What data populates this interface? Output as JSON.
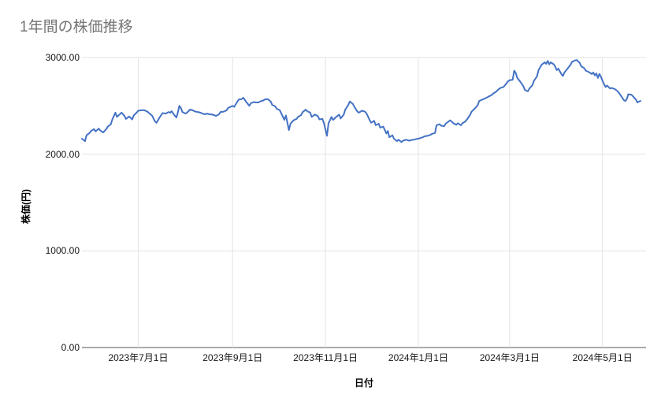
{
  "chart_data": {
    "type": "line",
    "title": "1年間の株価推移",
    "xlabel": "日付",
    "ylabel": "株価(円)",
    "legend": "none",
    "grid": "on",
    "line_color": "#4472c4",
    "grid_color": "#e3e3e3",
    "axis_line_color": "#555555",
    "title_color": "#757575",
    "ylim": [
      0,
      3000
    ],
    "y_ticks": [
      {
        "value": 0,
        "label": "0.00"
      },
      {
        "value": 1000,
        "label": "1000.00"
      },
      {
        "value": 2000,
        "label": "2000.00"
      },
      {
        "value": 3000,
        "label": "3000.00"
      }
    ],
    "x_epoch": "2023-05-25",
    "x_unit": "days_since_epoch",
    "x_max_day": 367,
    "x_ticks": [
      {
        "day": 37,
        "label": "2023年7月1日"
      },
      {
        "day": 99,
        "label": "2023年9月1日"
      },
      {
        "day": 160,
        "label": "2023年11月1日"
      },
      {
        "day": 221,
        "label": "2024年1月1日"
      },
      {
        "day": 281,
        "label": "2024年3月1日"
      },
      {
        "day": 342,
        "label": "2024年5月1日"
      }
    ],
    "series_name": "株価",
    "points": [
      [
        0,
        2160
      ],
      [
        2,
        2135
      ],
      [
        3,
        2195
      ],
      [
        5,
        2220
      ],
      [
        6,
        2240
      ],
      [
        8,
        2260
      ],
      [
        9,
        2235
      ],
      [
        11,
        2265
      ],
      [
        12,
        2245
      ],
      [
        14,
        2225
      ],
      [
        16,
        2260
      ],
      [
        17,
        2285
      ],
      [
        19,
        2310
      ],
      [
        20,
        2360
      ],
      [
        22,
        2430
      ],
      [
        23,
        2385
      ],
      [
        25,
        2415
      ],
      [
        26,
        2430
      ],
      [
        28,
        2395
      ],
      [
        29,
        2365
      ],
      [
        31,
        2390
      ],
      [
        33,
        2360
      ],
      [
        34,
        2400
      ],
      [
        36,
        2430
      ],
      [
        37,
        2450
      ],
      [
        39,
        2455
      ],
      [
        41,
        2455
      ],
      [
        43,
        2440
      ],
      [
        46,
        2400
      ],
      [
        48,
        2340
      ],
      [
        49,
        2325
      ],
      [
        51,
        2380
      ],
      [
        53,
        2425
      ],
      [
        55,
        2420
      ],
      [
        57,
        2437
      ],
      [
        58,
        2429
      ],
      [
        59,
        2445
      ],
      [
        60,
        2420
      ],
      [
        62,
        2379
      ],
      [
        63,
        2429
      ],
      [
        64,
        2500
      ],
      [
        65,
        2478
      ],
      [
        66,
        2437
      ],
      [
        68,
        2420
      ],
      [
        69,
        2429
      ],
      [
        70,
        2445
      ],
      [
        71,
        2462
      ],
      [
        73,
        2453
      ],
      [
        74,
        2443
      ],
      [
        76,
        2437
      ],
      [
        78,
        2429
      ],
      [
        79,
        2420
      ],
      [
        81,
        2413
      ],
      [
        82,
        2420
      ],
      [
        84,
        2412
      ],
      [
        85,
        2412
      ],
      [
        87,
        2404
      ],
      [
        88,
        2396
      ],
      [
        90,
        2412
      ],
      [
        91,
        2437
      ],
      [
        93,
        2440
      ],
      [
        95,
        2453
      ],
      [
        96,
        2478
      ],
      [
        97,
        2486
      ],
      [
        99,
        2500
      ],
      [
        100,
        2490
      ],
      [
        102,
        2540
      ],
      [
        103,
        2565
      ],
      [
        105,
        2570
      ],
      [
        106,
        2584
      ],
      [
        108,
        2540
      ],
      [
        110,
        2500
      ],
      [
        111,
        2527
      ],
      [
        113,
        2540
      ],
      [
        114,
        2535
      ],
      [
        116,
        2535
      ],
      [
        117,
        2545
      ],
      [
        119,
        2555
      ],
      [
        120,
        2565
      ],
      [
        122,
        2570
      ],
      [
        124,
        2545
      ],
      [
        125,
        2510
      ],
      [
        127,
        2495
      ],
      [
        128,
        2470
      ],
      [
        130,
        2455
      ],
      [
        131,
        2420
      ],
      [
        133,
        2355
      ],
      [
        134,
        2400
      ],
      [
        136,
        2250
      ],
      [
        137,
        2315
      ],
      [
        139,
        2350
      ],
      [
        141,
        2365
      ],
      [
        142,
        2385
      ],
      [
        144,
        2405
      ],
      [
        145,
        2435
      ],
      [
        147,
        2460
      ],
      [
        148,
        2445
      ],
      [
        150,
        2430
      ],
      [
        151,
        2385
      ],
      [
        153,
        2410
      ],
      [
        155,
        2395
      ],
      [
        156,
        2360
      ],
      [
        158,
        2365
      ],
      [
        159,
        2320
      ],
      [
        161,
        2190
      ],
      [
        162,
        2320
      ],
      [
        164,
        2385
      ],
      [
        165,
        2355
      ],
      [
        167,
        2385
      ],
      [
        169,
        2410
      ],
      [
        170,
        2370
      ],
      [
        172,
        2410
      ],
      [
        173,
        2460
      ],
      [
        175,
        2510
      ],
      [
        176,
        2545
      ],
      [
        178,
        2520
      ],
      [
        179,
        2490
      ],
      [
        181,
        2440
      ],
      [
        182,
        2430
      ],
      [
        184,
        2450
      ],
      [
        186,
        2440
      ],
      [
        187,
        2420
      ],
      [
        189,
        2355
      ],
      [
        190,
        2325
      ],
      [
        192,
        2345
      ],
      [
        193,
        2300
      ],
      [
        195,
        2315
      ],
      [
        196,
        2275
      ],
      [
        198,
        2285
      ],
      [
        200,
        2215
      ],
      [
        201,
        2240
      ],
      [
        202,
        2175
      ],
      [
        204,
        2195
      ],
      [
        205,
        2160
      ],
      [
        207,
        2135
      ],
      [
        208,
        2150
      ],
      [
        210,
        2125
      ],
      [
        211,
        2140
      ],
      [
        213,
        2150
      ],
      [
        215,
        2140
      ],
      [
        216,
        2145
      ],
      [
        218,
        2150
      ],
      [
        219,
        2155
      ],
      [
        221,
        2160
      ],
      [
        222,
        2165
      ],
      [
        224,
        2175
      ],
      [
        225,
        2185
      ],
      [
        227,
        2190
      ],
      [
        229,
        2200
      ],
      [
        230,
        2210
      ],
      [
        232,
        2220
      ],
      [
        233,
        2300
      ],
      [
        235,
        2310
      ],
      [
        236,
        2295
      ],
      [
        238,
        2290
      ],
      [
        239,
        2315
      ],
      [
        241,
        2340
      ],
      [
        242,
        2350
      ],
      [
        244,
        2320
      ],
      [
        246,
        2305
      ],
      [
        247,
        2320
      ],
      [
        249,
        2300
      ],
      [
        250,
        2320
      ],
      [
        252,
        2340
      ],
      [
        253,
        2360
      ],
      [
        255,
        2405
      ],
      [
        256,
        2440
      ],
      [
        258,
        2470
      ],
      [
        260,
        2505
      ],
      [
        261,
        2550
      ],
      [
        263,
        2565
      ],
      [
        264,
        2570
      ],
      [
        266,
        2585
      ],
      [
        267,
        2595
      ],
      [
        269,
        2610
      ],
      [
        270,
        2625
      ],
      [
        272,
        2645
      ],
      [
        274,
        2675
      ],
      [
        275,
        2685
      ],
      [
        277,
        2695
      ],
      [
        278,
        2715
      ],
      [
        280,
        2755
      ],
      [
        281,
        2765
      ],
      [
        283,
        2770
      ],
      [
        284,
        2865
      ],
      [
        285,
        2840
      ],
      [
        286,
        2790
      ],
      [
        288,
        2750
      ],
      [
        290,
        2705
      ],
      [
        291,
        2665
      ],
      [
        293,
        2650
      ],
      [
        294,
        2680
      ],
      [
        296,
        2715
      ],
      [
        297,
        2760
      ],
      [
        299,
        2805
      ],
      [
        300,
        2870
      ],
      [
        302,
        2925
      ],
      [
        304,
        2950
      ],
      [
        305,
        2935
      ],
      [
        306,
        2965
      ],
      [
        307,
        2930
      ],
      [
        308,
        2950
      ],
      [
        310,
        2930
      ],
      [
        311,
        2905
      ],
      [
        312,
        2870
      ],
      [
        313,
        2885
      ],
      [
        315,
        2830
      ],
      [
        316,
        2810
      ],
      [
        317,
        2845
      ],
      [
        319,
        2885
      ],
      [
        321,
        2925
      ],
      [
        322,
        2955
      ],
      [
        324,
        2970
      ],
      [
        325,
        2975
      ],
      [
        327,
        2945
      ],
      [
        328,
        2910
      ],
      [
        330,
        2890
      ],
      [
        331,
        2865
      ],
      [
        333,
        2850
      ],
      [
        335,
        2830
      ],
      [
        336,
        2845
      ],
      [
        337,
        2815
      ],
      [
        338,
        2835
      ],
      [
        339,
        2790
      ],
      [
        340,
        2830
      ],
      [
        341,
        2800
      ],
      [
        342,
        2760
      ],
      [
        343,
        2725
      ],
      [
        344,
        2695
      ],
      [
        345,
        2710
      ],
      [
        347,
        2680
      ],
      [
        348,
        2685
      ],
      [
        350,
        2675
      ],
      [
        352,
        2650
      ],
      [
        353,
        2630
      ],
      [
        355,
        2585
      ],
      [
        356,
        2560
      ],
      [
        357,
        2550
      ],
      [
        358,
        2570
      ],
      [
        359,
        2620
      ],
      [
        361,
        2615
      ],
      [
        362,
        2600
      ],
      [
        364,
        2565
      ],
      [
        365,
        2535
      ],
      [
        366,
        2545
      ],
      [
        367,
        2550
      ]
    ]
  }
}
